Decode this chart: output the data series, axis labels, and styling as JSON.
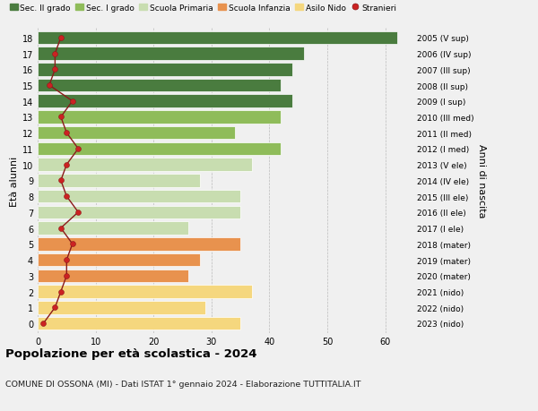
{
  "ages": [
    0,
    1,
    2,
    3,
    4,
    5,
    6,
    7,
    8,
    9,
    10,
    11,
    12,
    13,
    14,
    15,
    16,
    17,
    18
  ],
  "right_labels": [
    "2023 (nido)",
    "2022 (nido)",
    "2021 (nido)",
    "2020 (mater)",
    "2019 (mater)",
    "2018 (mater)",
    "2017 (I ele)",
    "2016 (II ele)",
    "2015 (III ele)",
    "2014 (IV ele)",
    "2013 (V ele)",
    "2012 (I med)",
    "2011 (II med)",
    "2010 (III med)",
    "2009 (I sup)",
    "2008 (II sup)",
    "2007 (III sup)",
    "2006 (IV sup)",
    "2005 (V sup)"
  ],
  "bar_values": [
    35,
    29,
    37,
    26,
    28,
    35,
    26,
    35,
    35,
    28,
    37,
    42,
    34,
    42,
    44,
    42,
    44,
    46,
    62
  ],
  "bar_colors": [
    "#f5d77e",
    "#f5d77e",
    "#f5d77e",
    "#e8924e",
    "#e8924e",
    "#e8924e",
    "#c8ddb0",
    "#c8ddb0",
    "#c8ddb0",
    "#c8ddb0",
    "#c8ddb0",
    "#8fbc5a",
    "#8fbc5a",
    "#8fbc5a",
    "#4a7c3f",
    "#4a7c3f",
    "#4a7c3f",
    "#4a7c3f",
    "#4a7c3f"
  ],
  "stranieri_values": [
    1,
    3,
    4,
    5,
    5,
    6,
    4,
    7,
    5,
    4,
    5,
    7,
    5,
    4,
    6,
    2,
    3,
    3,
    4
  ],
  "legend_labels": [
    "Sec. II grado",
    "Sec. I grado",
    "Scuola Primaria",
    "Scuola Infanzia",
    "Asilo Nido",
    "Stranieri"
  ],
  "legend_colors": [
    "#4a7c3f",
    "#8fbc5a",
    "#c8ddb0",
    "#e8924e",
    "#f5d77e",
    "#cc2222"
  ],
  "ylabel_left": "Età alunni",
  "ylabel_right": "Anni di nascita",
  "xlim": [
    0,
    65
  ],
  "xticks": [
    0,
    10,
    20,
    30,
    40,
    50,
    60
  ],
  "title": "Popolazione per età scolastica - 2024",
  "subtitle": "COMUNE DI OSSONA (MI) - Dati ISTAT 1° gennaio 2024 - Elaborazione TUTTITALIA.IT",
  "bg_color": "#f0f0f0",
  "bar_height": 0.82
}
